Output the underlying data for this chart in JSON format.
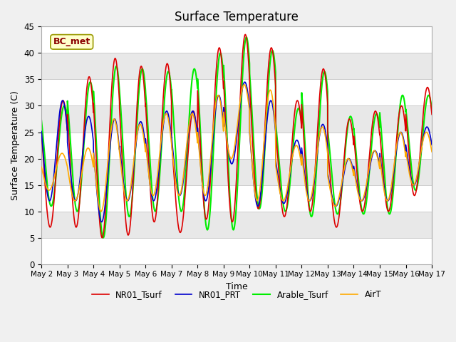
{
  "title": "Surface Temperature",
  "ylabel": "Surface Temperature (C)",
  "xlabel": "Time",
  "ylim": [
    0,
    45
  ],
  "xlim": [
    0,
    360
  ],
  "annotation": "BC_met",
  "fig_bg": "#f0f0f0",
  "plot_bg": "#e8e8e8",
  "legend": [
    "NR01_Tsurf",
    "NR01_PRT",
    "Arable_Tsurf",
    "AirT"
  ],
  "colors": [
    "#dd0000",
    "#0000cc",
    "#00ee00",
    "#ffaa00"
  ],
  "x_tick_labels": [
    "May 2",
    "May 3",
    "May 4",
    "May 5",
    "May 6",
    "May 7",
    "May 8",
    "May 9",
    "May 10",
    "May 11",
    "May 12",
    "May 13",
    "May 14",
    "May 15",
    "May 16",
    "May 17"
  ],
  "x_tick_positions": [
    0,
    24,
    48,
    72,
    96,
    120,
    144,
    168,
    192,
    216,
    240,
    264,
    288,
    312,
    336,
    360
  ],
  "yticks": [
    0,
    5,
    10,
    15,
    20,
    25,
    30,
    35,
    40,
    45
  ],
  "nr01_peaks": [
    31,
    35.5,
    39,
    37.5,
    38,
    29,
    41,
    43.5,
    41,
    31,
    37,
    27.5,
    29,
    30,
    33.5
  ],
  "nr01_troughs": [
    7,
    7,
    5,
    5.5,
    8,
    6,
    8.5,
    8,
    10.5,
    9,
    10,
    7,
    10,
    10,
    13
  ],
  "arable_peaks": [
    30,
    34.5,
    37.5,
    37,
    36.5,
    37,
    40,
    43,
    40.5,
    29.5,
    36.5,
    28,
    28.5,
    32,
    32
  ],
  "arable_troughs": [
    11,
    10,
    5,
    9,
    10,
    10,
    6.5,
    6.5,
    10.5,
    10,
    9,
    9.5,
    9.5,
    9.5,
    14
  ],
  "prt_peaks": [
    31,
    28,
    27.5,
    27,
    29,
    29,
    32,
    34.5,
    31,
    23.5,
    26.5,
    20,
    21.5,
    25,
    26
  ],
  "prt_troughs": [
    12,
    12,
    8,
    12,
    12,
    13,
    12,
    19,
    11,
    11.5,
    12,
    11,
    12,
    12,
    15
  ],
  "air_peaks": [
    21,
    22,
    27.5,
    26.5,
    28.5,
    28.5,
    32,
    34,
    33,
    22.5,
    26,
    20,
    21.5,
    25,
    25
  ],
  "air_troughs": [
    14,
    12,
    10,
    12,
    13,
    13,
    13,
    20,
    12,
    12,
    12,
    11,
    12,
    12,
    15
  ]
}
